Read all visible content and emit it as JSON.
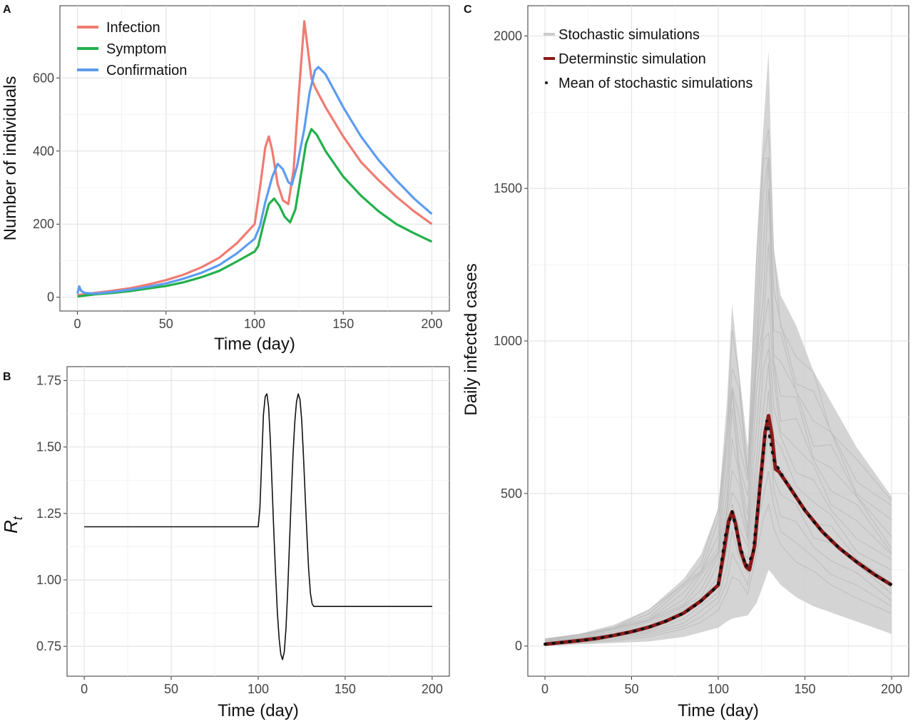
{
  "chart_data": [
    {
      "panel": "A",
      "type": "line",
      "xlabel": "Time (day)",
      "ylabel": "Number of individuals",
      "xlim": [
        0,
        200
      ],
      "ylim": [
        0,
        760
      ],
      "x_ticks": [
        0,
        50,
        100,
        150,
        200
      ],
      "y_ticks": [
        0,
        200,
        400,
        600
      ],
      "grid": true,
      "legend": "top-left",
      "series": [
        {
          "name": "Infection",
          "color": "#f07b72",
          "points": [
            [
              0,
              6
            ],
            [
              10,
              12
            ],
            [
              20,
              18
            ],
            [
              30,
              25
            ],
            [
              40,
              35
            ],
            [
              50,
              47
            ],
            [
              60,
              62
            ],
            [
              70,
              82
            ],
            [
              80,
              108
            ],
            [
              90,
              148
            ],
            [
              100,
              200
            ],
            [
              103,
              300
            ],
            [
              106,
              410
            ],
            [
              108,
              440
            ],
            [
              110,
              400
            ],
            [
              113,
              310
            ],
            [
              116,
              265
            ],
            [
              119,
              255
            ],
            [
              122,
              350
            ],
            [
              125,
              560
            ],
            [
              128,
              755
            ],
            [
              130,
              680
            ],
            [
              132,
              600
            ],
            [
              134,
              575
            ],
            [
              140,
              520
            ],
            [
              150,
              440
            ],
            [
              160,
              370
            ],
            [
              170,
              320
            ],
            [
              180,
              275
            ],
            [
              190,
              235
            ],
            [
              200,
              200
            ]
          ]
        },
        {
          "name": "Symptom",
          "color": "#22b04b",
          "points": [
            [
              0,
              2
            ],
            [
              10,
              8
            ],
            [
              20,
              12
            ],
            [
              30,
              17
            ],
            [
              40,
              24
            ],
            [
              50,
              31
            ],
            [
              60,
              41
            ],
            [
              70,
              55
            ],
            [
              80,
              72
            ],
            [
              90,
              98
            ],
            [
              100,
              125
            ],
            [
              102,
              140
            ],
            [
              105,
              200
            ],
            [
              108,
              255
            ],
            [
              111,
              270
            ],
            [
              114,
              250
            ],
            [
              117,
              220
            ],
            [
              120,
              205
            ],
            [
              123,
              240
            ],
            [
              126,
              330
            ],
            [
              129,
              420
            ],
            [
              132,
              460
            ],
            [
              135,
              445
            ],
            [
              140,
              400
            ],
            [
              150,
              330
            ],
            [
              160,
              278
            ],
            [
              170,
              235
            ],
            [
              180,
              200
            ],
            [
              190,
              175
            ],
            [
              200,
              152
            ]
          ]
        },
        {
          "name": "Confirmation",
          "color": "#5d9cf0",
          "points": [
            [
              0,
              10
            ],
            [
              1,
              30
            ],
            [
              2,
              18
            ],
            [
              4,
              12
            ],
            [
              10,
              10
            ],
            [
              20,
              15
            ],
            [
              30,
              21
            ],
            [
              40,
              29
            ],
            [
              50,
              38
            ],
            [
              60,
              51
            ],
            [
              70,
              67
            ],
            [
              80,
              88
            ],
            [
              90,
              120
            ],
            [
              100,
              160
            ],
            [
              103,
              195
            ],
            [
              106,
              260
            ],
            [
              110,
              330
            ],
            [
              113,
              365
            ],
            [
              116,
              350
            ],
            [
              119,
              315
            ],
            [
              121,
              308
            ],
            [
              124,
              360
            ],
            [
              128,
              460
            ],
            [
              131,
              560
            ],
            [
              134,
              620
            ],
            [
              136,
              630
            ],
            [
              140,
              610
            ],
            [
              150,
              520
            ],
            [
              160,
              440
            ],
            [
              170,
              375
            ],
            [
              180,
              320
            ],
            [
              190,
              270
            ],
            [
              200,
              228
            ]
          ]
        }
      ]
    },
    {
      "panel": "B",
      "type": "line",
      "xlabel": "Time (day)",
      "ylabel": "R",
      "ylabel_subscript": "t",
      "xlim": [
        0,
        200
      ],
      "ylim": [
        0.69,
        1.75
      ],
      "x_ticks": [
        0,
        50,
        100,
        150,
        200
      ],
      "y_ticks": [
        0.75,
        1.0,
        1.25,
        1.5,
        1.75
      ],
      "y_tick_labels": [
        "0.75",
        "1.00",
        "1.25",
        "1.50",
        "1.75"
      ],
      "grid": true,
      "series": [
        {
          "color": "#111111",
          "points": [
            [
              0,
              1.2
            ],
            [
              100,
              1.2
            ],
            [
              101,
              1.27
            ],
            [
              102,
              1.45
            ],
            [
              103,
              1.62
            ],
            [
              104,
              1.69
            ],
            [
              105,
              1.7
            ],
            [
              106,
              1.65
            ],
            [
              107,
              1.52
            ],
            [
              108,
              1.35
            ],
            [
              109,
              1.18
            ],
            [
              110,
              1.02
            ],
            [
              111,
              0.88
            ],
            [
              112,
              0.78
            ],
            [
              113,
              0.72
            ],
            [
              114,
              0.7
            ],
            [
              115,
              0.73
            ],
            [
              116,
              0.82
            ],
            [
              117,
              0.97
            ],
            [
              118,
              1.14
            ],
            [
              119,
              1.31
            ],
            [
              120,
              1.47
            ],
            [
              121,
              1.59
            ],
            [
              122,
              1.67
            ],
            [
              123,
              1.7
            ],
            [
              124,
              1.68
            ],
            [
              125,
              1.6
            ],
            [
              126,
              1.47
            ],
            [
              127,
              1.32
            ],
            [
              128,
              1.17
            ],
            [
              129,
              1.04
            ],
            [
              130,
              0.95
            ],
            [
              131,
              0.91
            ],
            [
              132,
              0.9
            ],
            [
              200,
              0.9
            ]
          ]
        }
      ]
    },
    {
      "panel": "C",
      "type": "line",
      "xlabel": "Time (day)",
      "ylabel": "Daily infected cases",
      "xlim": [
        0,
        200
      ],
      "ylim": [
        0,
        2000
      ],
      "x_ticks": [
        0,
        50,
        100,
        150,
        200
      ],
      "y_ticks": [
        0,
        500,
        1000,
        1500,
        2000
      ],
      "grid": true,
      "legend": "top-left",
      "stochastic_band": {
        "name": "Stochastic simulations",
        "color": "#cccccc",
        "x": [
          0,
          20,
          40,
          60,
          80,
          90,
          100,
          105,
          108,
          112,
          117,
          122,
          126,
          129,
          132,
          136,
          145,
          155,
          165,
          180,
          200
        ],
        "lower": [
          0,
          5,
          10,
          15,
          30,
          45,
          60,
          80,
          90,
          95,
          100,
          140,
          200,
          250,
          230,
          200,
          160,
          130,
          110,
          80,
          40
        ],
        "upper": [
          25,
          40,
          70,
          120,
          220,
          300,
          450,
          800,
          1120,
          900,
          650,
          1300,
          1700,
          1950,
          1300,
          1150,
          1050,
          900,
          800,
          650,
          490
        ]
      },
      "series": [
        {
          "name": "Determinstic simulation",
          "color": "#8b1a1a",
          "points": [
            [
              0,
              6
            ],
            [
              10,
              12
            ],
            [
              20,
              18
            ],
            [
              30,
              25
            ],
            [
              40,
              35
            ],
            [
              50,
              47
            ],
            [
              60,
              62
            ],
            [
              70,
              82
            ],
            [
              80,
              108
            ],
            [
              90,
              148
            ],
            [
              100,
              200
            ],
            [
              103,
              300
            ],
            [
              106,
              410
            ],
            [
              108,
              440
            ],
            [
              110,
              400
            ],
            [
              113,
              310
            ],
            [
              116,
              260
            ],
            [
              118,
              250
            ],
            [
              121,
              330
            ],
            [
              124,
              520
            ],
            [
              127,
              700
            ],
            [
              129,
              755
            ],
            [
              131,
              690
            ],
            [
              133,
              580
            ],
            [
              135,
              572
            ],
            [
              140,
              530
            ],
            [
              150,
              445
            ],
            [
              160,
              375
            ],
            [
              170,
              320
            ],
            [
              180,
              275
            ],
            [
              190,
              235
            ],
            [
              200,
              200
            ]
          ]
        },
        {
          "name": "Mean of stochastic simulations",
          "color": "#111111",
          "points": [
            [
              0,
              6
            ],
            [
              5,
              9
            ],
            [
              10,
              12
            ],
            [
              15,
              15
            ],
            [
              20,
              18
            ],
            [
              25,
              21
            ],
            [
              30,
              25
            ],
            [
              35,
              30
            ],
            [
              40,
              35
            ],
            [
              45,
              41
            ],
            [
              50,
              47
            ],
            [
              55,
              54
            ],
            [
              60,
              62
            ],
            [
              65,
              72
            ],
            [
              70,
              82
            ],
            [
              75,
              94
            ],
            [
              80,
              108
            ],
            [
              85,
              126
            ],
            [
              90,
              148
            ],
            [
              95,
              172
            ],
            [
              100,
              200
            ],
            [
              104,
              360
            ],
            [
              108,
              440
            ],
            [
              112,
              340
            ],
            [
              116,
              260
            ],
            [
              120,
              300
            ],
            [
              124,
              520
            ],
            [
              128,
              740
            ],
            [
              132,
              610
            ],
            [
              136,
              568
            ],
            [
              140,
              530
            ],
            [
              145,
              488
            ],
            [
              150,
              445
            ],
            [
              155,
              408
            ],
            [
              160,
              375
            ],
            [
              165,
              346
            ],
            [
              170,
              320
            ],
            [
              175,
              297
            ],
            [
              180,
              275
            ],
            [
              185,
              255
            ],
            [
              190,
              235
            ],
            [
              195,
              217
            ],
            [
              200,
              200
            ]
          ]
        }
      ]
    }
  ],
  "panels": {
    "A": {
      "label": "A"
    },
    "B": {
      "label": "B"
    },
    "C": {
      "label": "C"
    }
  }
}
